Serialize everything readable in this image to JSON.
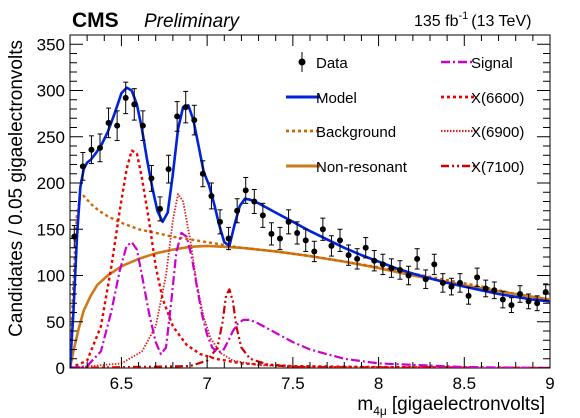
{
  "header": {
    "experiment": "CMS",
    "status": "Preliminary",
    "luminosity": "135 fb",
    "luminosity_exp": "-1",
    "energy": "(13 TeV)"
  },
  "chart_data": {
    "type": "line",
    "xlabel_main": "m",
    "xlabel_sub": "4μ",
    "xlabel_unit": "[gigaelectronvolts]",
    "ylabel": "Candidates / 0.05 gigaelectronvolts",
    "xlim": [
      6.2,
      9.0
    ],
    "ylim": [
      0,
      360
    ],
    "xticks": [
      6.5,
      7,
      7.5,
      8,
      8.5,
      9
    ],
    "xtick_labels": [
      "6.5",
      "7",
      "7.5",
      "8",
      "8.5",
      "9"
    ],
    "yticks": [
      0,
      50,
      100,
      150,
      200,
      250,
      300,
      350
    ],
    "ytick_labels": [
      "0",
      "50",
      "100",
      "150",
      "200",
      "250",
      "300",
      "350"
    ],
    "legend": {
      "placement": "top-right",
      "entries": [
        "Data",
        "Model",
        "Background",
        "Non-resonant",
        "Signal",
        "X(6600)",
        "X(6900)",
        "X(7100)"
      ]
    },
    "data": {
      "name": "Data",
      "x": [
        6.225,
        6.275,
        6.325,
        6.375,
        6.425,
        6.475,
        6.525,
        6.575,
        6.625,
        6.675,
        6.725,
        6.775,
        6.825,
        6.875,
        6.925,
        6.975,
        7.025,
        7.075,
        7.125,
        7.175,
        7.225,
        7.275,
        7.325,
        7.375,
        7.425,
        7.475,
        7.525,
        7.575,
        7.625,
        7.675,
        7.725,
        7.775,
        7.825,
        7.875,
        7.925,
        7.975,
        8.025,
        8.075,
        8.125,
        8.175,
        8.225,
        8.275,
        8.325,
        8.375,
        8.425,
        8.475,
        8.525,
        8.575,
        8.625,
        8.675,
        8.725,
        8.775,
        8.825,
        8.875,
        8.925,
        8.975
      ],
      "y": [
        142,
        218,
        236,
        238,
        265,
        262,
        292,
        285,
        262,
        205,
        172,
        215,
        272,
        282,
        268,
        210,
        186,
        158,
        140,
        170,
        192,
        180,
        165,
        145,
        140,
        158,
        146,
        138,
        126,
        150,
        132,
        138,
        122,
        118,
        130,
        116,
        112,
        108,
        106,
        100,
        118,
        96,
        112,
        92,
        88,
        92,
        78,
        98,
        86,
        84,
        74,
        68,
        80,
        72,
        70,
        82
      ],
      "err": [
        12,
        15,
        15,
        15,
        16,
        16,
        17,
        17,
        16,
        14,
        13,
        15,
        16,
        17,
        16,
        14,
        14,
        13,
        12,
        13,
        14,
        13,
        13,
        12,
        12,
        13,
        12,
        12,
        11,
        12,
        11,
        12,
        11,
        11,
        11,
        11,
        11,
        10,
        10,
        10,
        11,
        10,
        11,
        10,
        9,
        10,
        9,
        10,
        9,
        9,
        9,
        8,
        9,
        8,
        8,
        9
      ]
    },
    "series": [
      {
        "name": "Model",
        "color": "#0022dd",
        "style": "solid",
        "x": [
          6.2,
          6.22,
          6.24,
          6.26,
          6.28,
          6.3,
          6.32,
          6.35,
          6.38,
          6.42,
          6.46,
          6.5,
          6.53,
          6.56,
          6.59,
          6.62,
          6.65,
          6.68,
          6.71,
          6.74,
          6.77,
          6.8,
          6.83,
          6.86,
          6.89,
          6.92,
          6.95,
          6.98,
          7.01,
          7.04,
          7.07,
          7.1,
          7.13,
          7.16,
          7.19,
          7.22,
          7.25,
          7.3,
          7.4,
          7.5,
          7.6,
          7.7,
          7.8,
          7.9,
          8.0,
          8.1,
          8.2,
          8.3,
          8.4,
          8.5,
          8.6,
          8.7,
          8.8,
          8.9,
          9.0
        ],
        "y": [
          0,
          60,
          140,
          195,
          215,
          222,
          225,
          232,
          240,
          255,
          275,
          297,
          303,
          300,
          285,
          258,
          225,
          195,
          170,
          158,
          168,
          210,
          258,
          282,
          284,
          268,
          240,
          212,
          198,
          178,
          155,
          136,
          132,
          155,
          175,
          183,
          182,
          178,
          168,
          158,
          148,
          139,
          130,
          122,
          115,
          108,
          102,
          97,
          92,
          88,
          84,
          80,
          77,
          74,
          72
        ]
      },
      {
        "name": "Background",
        "color": "#cc6600",
        "style": "dotted",
        "x": [
          6.2,
          6.22,
          6.24,
          6.26,
          6.28,
          6.3,
          6.33,
          6.37,
          6.42,
          6.5,
          6.6,
          6.7,
          6.8,
          6.9,
          7.0,
          7.1,
          7.2,
          7.4,
          7.6,
          7.8,
          8.0,
          8.2,
          8.4,
          8.6,
          8.8,
          9.0
        ],
        "y": [
          0,
          90,
          165,
          185,
          186,
          182,
          176,
          170,
          164,
          157,
          150,
          146,
          142,
          139,
          136,
          133,
          130,
          126,
          121,
          115,
          109,
          102,
          95,
          88,
          80,
          73
        ]
      },
      {
        "name": "Non-resonant",
        "color": "#cc7a1a",
        "style": "solid",
        "x": [
          6.2,
          6.22,
          6.25,
          6.28,
          6.32,
          6.36,
          6.42,
          6.5,
          6.6,
          6.7,
          6.8,
          6.9,
          7.0,
          7.1,
          7.2,
          7.4,
          7.6,
          7.8,
          8.0,
          8.2,
          8.4,
          8.6,
          8.8,
          9.0
        ],
        "y": [
          0,
          18,
          42,
          62,
          78,
          90,
          100,
          110,
          118,
          124,
          128,
          131,
          132,
          131,
          130,
          126,
          121,
          115,
          108,
          100,
          93,
          86,
          80,
          74
        ]
      },
      {
        "name": "Signal",
        "color": "#cc00cc",
        "style": "dashdot",
        "x": [
          6.2,
          6.3,
          6.38,
          6.44,
          6.49,
          6.53,
          6.56,
          6.59,
          6.62,
          6.66,
          6.7,
          6.73,
          6.76,
          6.79,
          6.82,
          6.85,
          6.88,
          6.91,
          6.94,
          6.97,
          7.0,
          7.03,
          7.06,
          7.09,
          7.12,
          7.15,
          7.18,
          7.21,
          7.25,
          7.3,
          7.4,
          7.5,
          7.6,
          7.8,
          8.0,
          8.5,
          9.0
        ],
        "y": [
          0,
          2,
          18,
          60,
          105,
          132,
          136,
          128,
          100,
          60,
          28,
          15,
          22,
          70,
          125,
          146,
          142,
          120,
          88,
          58,
          36,
          22,
          17,
          18,
          28,
          40,
          48,
          52,
          52,
          48,
          38,
          28,
          20,
          10,
          5,
          1,
          0
        ]
      },
      {
        "name": "X(6600)",
        "color": "#ee0000",
        "style": "dotted",
        "x": [
          6.2,
          6.3,
          6.38,
          6.44,
          6.49,
          6.53,
          6.56,
          6.59,
          6.62,
          6.66,
          6.7,
          6.74,
          6.8,
          6.88,
          6.96,
          7.05,
          7.2,
          7.5,
          8.0,
          9.0
        ],
        "y": [
          0,
          8,
          45,
          108,
          170,
          215,
          235,
          232,
          205,
          160,
          110,
          75,
          45,
          25,
          15,
          10,
          5,
          2,
          1,
          0
        ]
      },
      {
        "name": "X(6900)",
        "color": "#dd2222",
        "style": "finedot",
        "x": [
          6.2,
          6.5,
          6.62,
          6.7,
          6.76,
          6.8,
          6.83,
          6.86,
          6.9,
          6.94,
          6.98,
          7.02,
          7.08,
          7.15,
          7.3,
          7.6,
          9.0
        ],
        "y": [
          0,
          5,
          18,
          45,
          100,
          160,
          188,
          180,
          140,
          90,
          55,
          32,
          16,
          8,
          3,
          1,
          0
        ]
      },
      {
        "name": "X(7100)",
        "color": "#cc0000",
        "style": "dashdotdot",
        "x": [
          6.2,
          6.9,
          7.0,
          7.06,
          7.09,
          7.11,
          7.13,
          7.15,
          7.17,
          7.2,
          7.25,
          7.35,
          7.5,
          9.0
        ],
        "y": [
          0,
          2,
          8,
          22,
          50,
          78,
          85,
          72,
          45,
          22,
          10,
          4,
          1,
          0
        ]
      }
    ]
  }
}
